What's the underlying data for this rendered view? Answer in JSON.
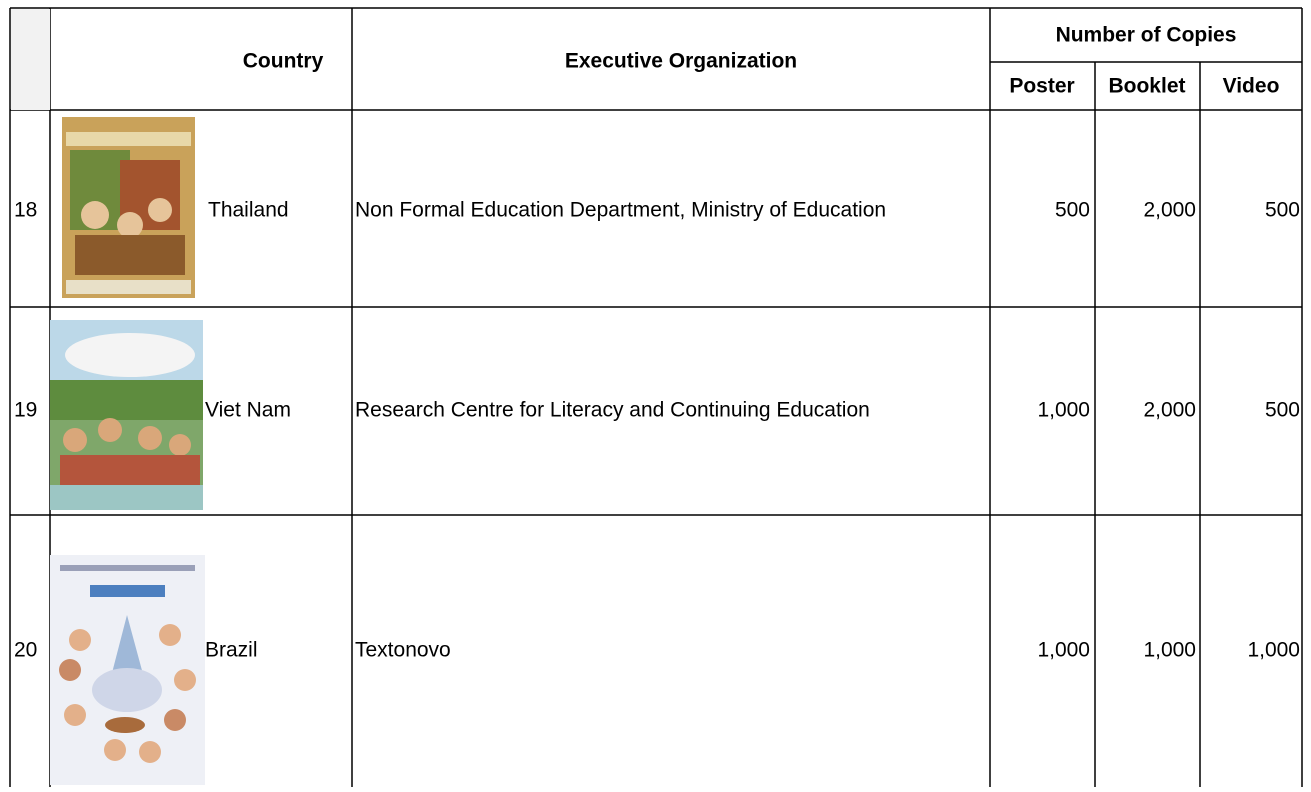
{
  "table": {
    "header": {
      "country": "Country",
      "organization": "Executive Organization",
      "copies": "Number of Copies",
      "poster": "Poster",
      "booklet": "Booklet",
      "video": "Video"
    },
    "rows": [
      [
        "18",
        "Thailand",
        "Non Formal Education Department, Ministry of Education",
        "500",
        "2,000",
        "500"
      ],
      [
        "19",
        "Viet Nam",
        "Research Centre for Literacy and Continuing Education",
        "1,000",
        "2,000",
        "500"
      ],
      [
        "20",
        "Brazil",
        "Textonovo",
        "1,000",
        "1,000",
        "1,000"
      ]
    ]
  }
}
